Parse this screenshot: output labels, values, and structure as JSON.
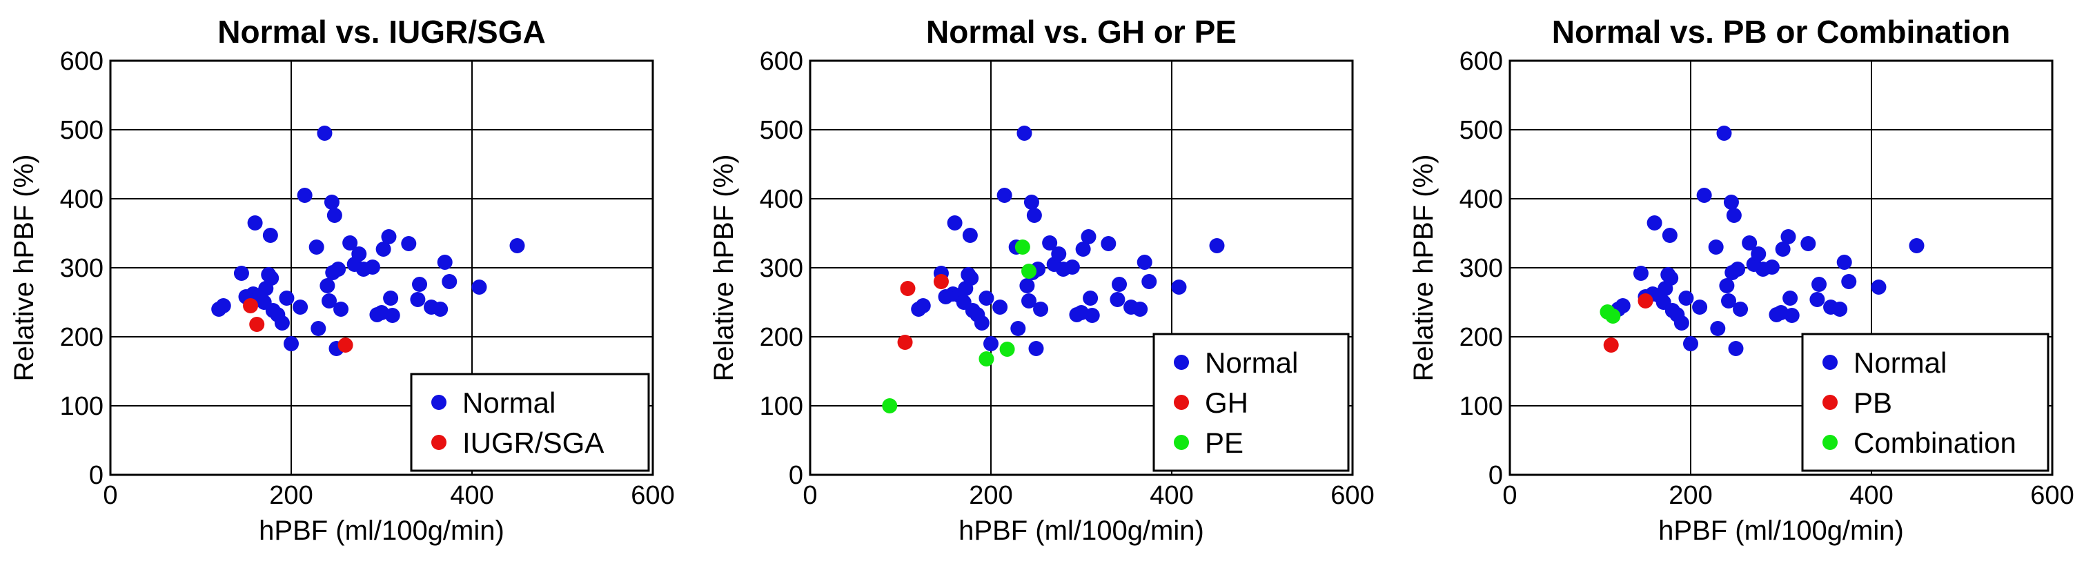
{
  "chart_data": [
    {
      "type": "scatter",
      "title": "Normal vs. IUGR/SGA",
      "xlabel": "hPBF (ml/100g/min)",
      "ylabel": "Relative hPBF (%)",
      "xlim": [
        0,
        600
      ],
      "ylim": [
        0,
        600
      ],
      "xticks": [
        "0",
        "200",
        "400",
        "600"
      ],
      "yticks": [
        "0",
        "100",
        "200",
        "300",
        "400",
        "500",
        "600"
      ],
      "legend_position": "bottom-right",
      "series": [
        {
          "name": "Normal",
          "color": "#1010e0",
          "points": [
            [
              120,
              240
            ],
            [
              125,
              245
            ],
            [
              145,
              292
            ],
            [
              150,
              258
            ],
            [
              158,
              262
            ],
            [
              160,
              365
            ],
            [
              165,
              260
            ],
            [
              170,
              250
            ],
            [
              172,
              270
            ],
            [
              175,
              290
            ],
            [
              177,
              347
            ],
            [
              178,
              285
            ],
            [
              180,
              238
            ],
            [
              185,
              232
            ],
            [
              190,
              220
            ],
            [
              195,
              256
            ],
            [
              200,
              190
            ],
            [
              210,
              243
            ],
            [
              215,
              405
            ],
            [
              230,
              212
            ],
            [
              228,
              330
            ],
            [
              237,
              495
            ],
            [
              240,
              274
            ],
            [
              242,
              252
            ],
            [
              245,
              395
            ],
            [
              246,
              293
            ],
            [
              248,
              376
            ],
            [
              250,
              183
            ],
            [
              252,
              298
            ],
            [
              255,
              240
            ],
            [
              265,
              336
            ],
            [
              270,
              305
            ],
            [
              275,
              320
            ],
            [
              280,
              298
            ],
            [
              290,
              301
            ],
            [
              295,
              232
            ],
            [
              300,
              235
            ],
            [
              302,
              327
            ],
            [
              308,
              345
            ],
            [
              310,
              256
            ],
            [
              312,
              231
            ],
            [
              330,
              335
            ],
            [
              340,
              254
            ],
            [
              342,
              276
            ],
            [
              355,
              243
            ],
            [
              365,
              240
            ],
            [
              370,
              308
            ],
            [
              375,
              280
            ],
            [
              408,
              272
            ],
            [
              450,
              332
            ]
          ]
        },
        {
          "name": "IUGR/SGA",
          "color": "#e81010",
          "points": [
            [
              155,
              245
            ],
            [
              162,
              218
            ],
            [
              260,
              188
            ]
          ]
        }
      ]
    },
    {
      "type": "scatter",
      "title": "Normal vs. GH or PE",
      "xlabel": "hPBF (ml/100g/min)",
      "ylabel": "Relative hPBF (%)",
      "xlim": [
        0,
        600
      ],
      "ylim": [
        0,
        600
      ],
      "xticks": [
        "0",
        "200",
        "400",
        "600"
      ],
      "yticks": [
        "0",
        "100",
        "200",
        "300",
        "400",
        "500",
        "600"
      ],
      "legend_position": "bottom-right",
      "series": [
        {
          "name": "Normal",
          "color": "#1010e0",
          "points": [
            [
              120,
              240
            ],
            [
              125,
              245
            ],
            [
              145,
              292
            ],
            [
              150,
              258
            ],
            [
              158,
              262
            ],
            [
              160,
              365
            ],
            [
              165,
              260
            ],
            [
              170,
              250
            ],
            [
              172,
              270
            ],
            [
              175,
              290
            ],
            [
              177,
              347
            ],
            [
              178,
              285
            ],
            [
              180,
              238
            ],
            [
              185,
              232
            ],
            [
              190,
              220
            ],
            [
              195,
              256
            ],
            [
              200,
              190
            ],
            [
              210,
              243
            ],
            [
              215,
              405
            ],
            [
              230,
              212
            ],
            [
              228,
              330
            ],
            [
              237,
              495
            ],
            [
              240,
              274
            ],
            [
              242,
              252
            ],
            [
              245,
              395
            ],
            [
              246,
              293
            ],
            [
              248,
              376
            ],
            [
              250,
              183
            ],
            [
              252,
              298
            ],
            [
              255,
              240
            ],
            [
              265,
              336
            ],
            [
              270,
              305
            ],
            [
              275,
              320
            ],
            [
              280,
              298
            ],
            [
              290,
              301
            ],
            [
              295,
              232
            ],
            [
              300,
              235
            ],
            [
              302,
              327
            ],
            [
              308,
              345
            ],
            [
              310,
              256
            ],
            [
              312,
              231
            ],
            [
              330,
              335
            ],
            [
              340,
              254
            ],
            [
              342,
              276
            ],
            [
              355,
              243
            ],
            [
              365,
              240
            ],
            [
              370,
              308
            ],
            [
              375,
              280
            ],
            [
              408,
              272
            ],
            [
              450,
              332
            ]
          ]
        },
        {
          "name": "GH",
          "color": "#e81010",
          "points": [
            [
              105,
              192
            ],
            [
              108,
              270
            ],
            [
              145,
              280
            ]
          ]
        },
        {
          "name": "PE",
          "color": "#10e810",
          "points": [
            [
              88,
              100
            ],
            [
              195,
              168
            ],
            [
              218,
              182
            ],
            [
              235,
              330
            ],
            [
              242,
              295
            ]
          ]
        }
      ]
    },
    {
      "type": "scatter",
      "title": "Normal vs. PB or Combination",
      "xlabel": "hPBF (ml/100g/min)",
      "ylabel": "Relative hPBF (%)",
      "xlim": [
        0,
        600
      ],
      "ylim": [
        0,
        600
      ],
      "xticks": [
        "0",
        "200",
        "400",
        "600"
      ],
      "yticks": [
        "0",
        "100",
        "200",
        "300",
        "400",
        "500",
        "600"
      ],
      "legend_position": "bottom-right",
      "series": [
        {
          "name": "Normal",
          "color": "#1010e0",
          "points": [
            [
              120,
              240
            ],
            [
              125,
              245
            ],
            [
              145,
              292
            ],
            [
              150,
              258
            ],
            [
              158,
              262
            ],
            [
              160,
              365
            ],
            [
              165,
              260
            ],
            [
              170,
              250
            ],
            [
              172,
              270
            ],
            [
              175,
              290
            ],
            [
              177,
              347
            ],
            [
              178,
              285
            ],
            [
              180,
              238
            ],
            [
              185,
              232
            ],
            [
              190,
              220
            ],
            [
              195,
              256
            ],
            [
              200,
              190
            ],
            [
              210,
              243
            ],
            [
              215,
              405
            ],
            [
              230,
              212
            ],
            [
              228,
              330
            ],
            [
              237,
              495
            ],
            [
              240,
              274
            ],
            [
              242,
              252
            ],
            [
              245,
              395
            ],
            [
              246,
              293
            ],
            [
              248,
              376
            ],
            [
              250,
              183
            ],
            [
              252,
              298
            ],
            [
              255,
              240
            ],
            [
              265,
              336
            ],
            [
              270,
              305
            ],
            [
              275,
              320
            ],
            [
              280,
              298
            ],
            [
              290,
              301
            ],
            [
              295,
              232
            ],
            [
              300,
              235
            ],
            [
              302,
              327
            ],
            [
              308,
              345
            ],
            [
              310,
              256
            ],
            [
              312,
              231
            ],
            [
              330,
              335
            ],
            [
              340,
              254
            ],
            [
              342,
              276
            ],
            [
              355,
              243
            ],
            [
              365,
              240
            ],
            [
              370,
              308
            ],
            [
              375,
              280
            ],
            [
              408,
              272
            ],
            [
              450,
              332
            ]
          ]
        },
        {
          "name": "PB",
          "color": "#e81010",
          "points": [
            [
              112,
              188
            ],
            [
              150,
              252
            ]
          ]
        },
        {
          "name": "Combination",
          "color": "#10e810",
          "points": [
            [
              108,
              236
            ],
            [
              114,
              230
            ]
          ]
        }
      ]
    }
  ]
}
